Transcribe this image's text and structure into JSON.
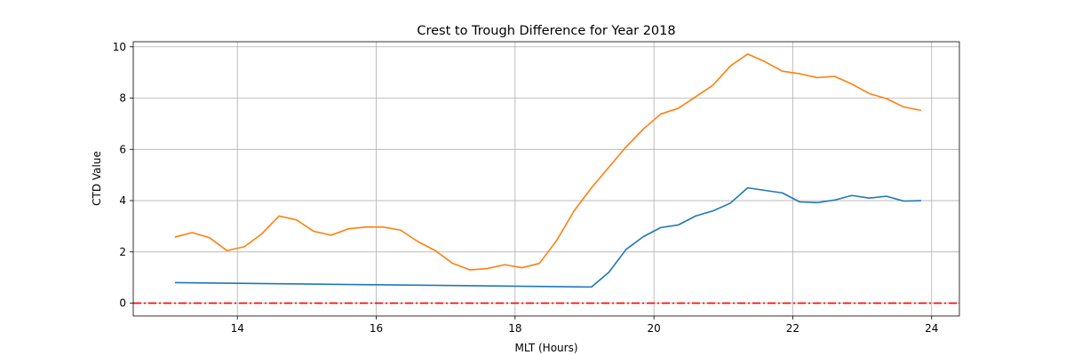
{
  "chart_data": {
    "type": "line",
    "title": "Crest to Trough Difference for Year 2018",
    "xlabel": "MLT (Hours)",
    "ylabel": "CTD Value",
    "xlim": [
      12.5,
      24.4
    ],
    "ylim": [
      -0.5,
      10.2
    ],
    "xticks": [
      14,
      16,
      18,
      20,
      22,
      24
    ],
    "yticks": [
      0,
      2,
      4,
      6,
      8,
      10
    ],
    "grid": true,
    "series": [
      {
        "color": "#1f77b4",
        "x": [
          13.1,
          19.1,
          19.35,
          19.6,
          19.85,
          20.1,
          20.35,
          20.6,
          20.85,
          21.1,
          21.35,
          21.6,
          21.85,
          22.1,
          22.35,
          22.6,
          22.85,
          23.1,
          23.35,
          23.6,
          23.85
        ],
        "y": [
          0.8,
          0.63,
          1.2,
          2.1,
          2.6,
          2.95,
          3.05,
          3.4,
          3.6,
          3.9,
          4.5,
          4.4,
          4.3,
          3.95,
          3.92,
          4.02,
          4.2,
          4.1,
          4.17,
          3.98,
          4.0
        ]
      },
      {
        "color": "#ff7f0e",
        "x": [
          13.1,
          13.35,
          13.6,
          13.85,
          14.1,
          14.35,
          14.6,
          14.85,
          15.1,
          15.35,
          15.6,
          15.85,
          16.1,
          16.35,
          16.6,
          16.85,
          17.1,
          17.35,
          17.6,
          17.85,
          18.1,
          18.35,
          18.6,
          18.85,
          19.1,
          19.35,
          19.6,
          19.85,
          20.1,
          20.35,
          20.6,
          20.85,
          21.1,
          21.35,
          21.6,
          21.85,
          22.1,
          22.35,
          22.6,
          22.85,
          23.1,
          23.35,
          23.6,
          23.85
        ],
        "y": [
          2.58,
          2.75,
          2.55,
          2.05,
          2.2,
          2.7,
          3.4,
          3.25,
          2.8,
          2.65,
          2.9,
          2.97,
          2.97,
          2.85,
          2.4,
          2.05,
          1.55,
          1.3,
          1.35,
          1.5,
          1.38,
          1.55,
          2.45,
          3.6,
          4.5,
          5.3,
          6.1,
          6.8,
          7.38,
          7.6,
          8.05,
          8.5,
          9.25,
          9.72,
          9.42,
          9.05,
          8.95,
          8.8,
          8.85,
          8.55,
          8.18,
          7.98,
          7.65,
          7.52
        ]
      }
    ],
    "reference_line": {
      "y": 0,
      "color": "#ff0000",
      "style": "dash-dot"
    }
  }
}
